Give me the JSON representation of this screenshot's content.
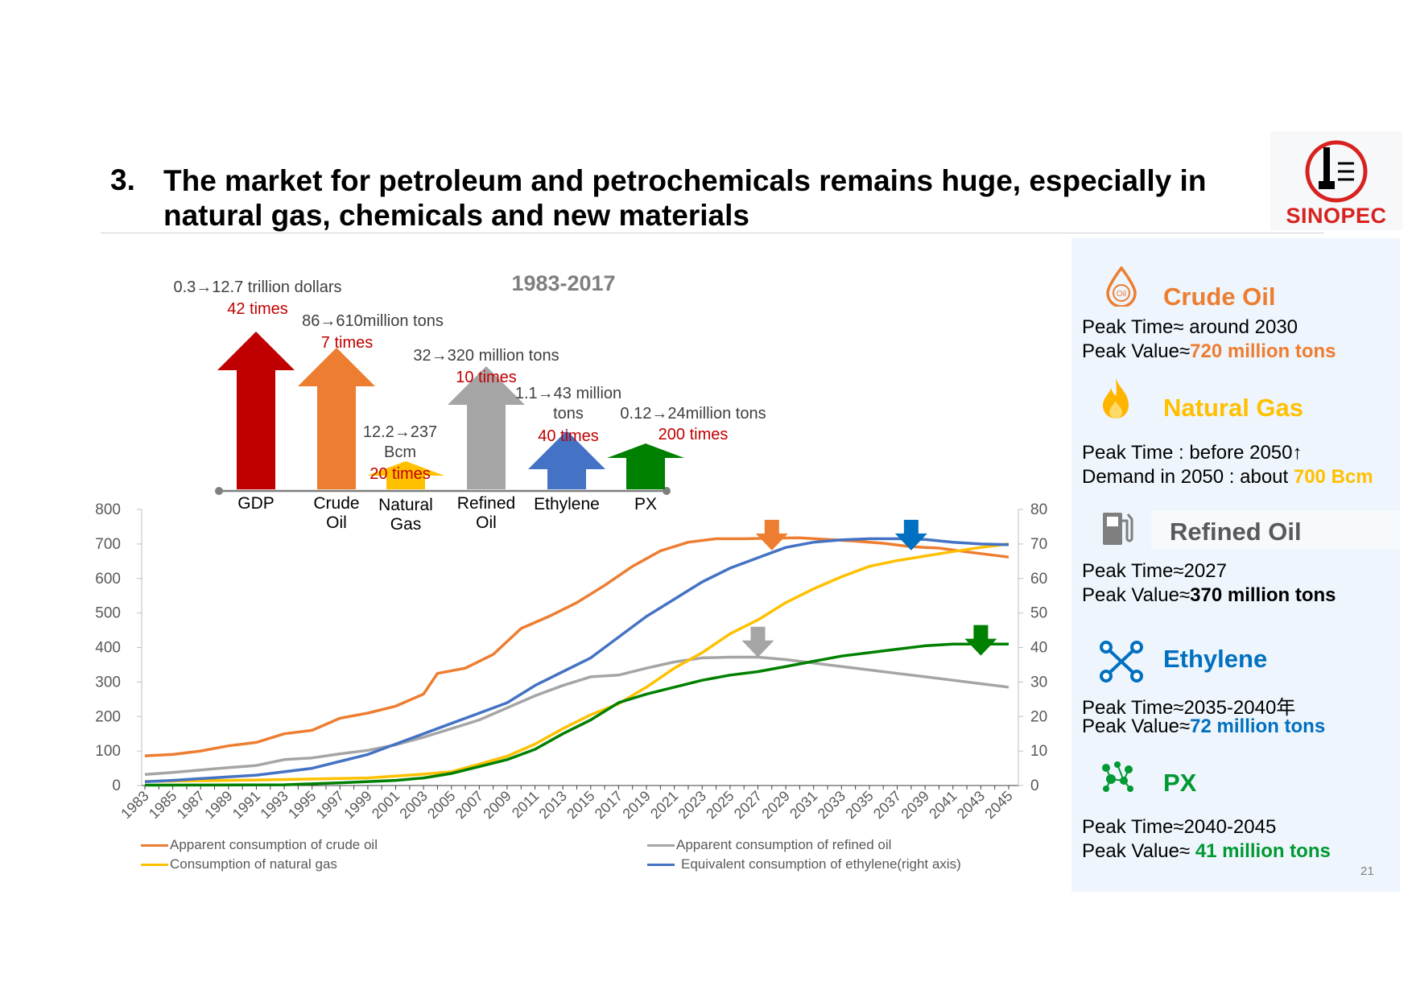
{
  "slide": {
    "number": "3.",
    "title": "The market for petroleum and petrochemicals remains huge, especially in natural gas, chemicals and new materials",
    "page": "21"
  },
  "logo": {
    "text": "SINOPEC",
    "colors": {
      "red": "#d7221f"
    }
  },
  "growth_panel": {
    "period": "1983-2017",
    "items": [
      {
        "label_1": "GDP",
        "label_2": "",
        "detail_1": "0.3→12.7 trillion dollars",
        "detail_2": "",
        "multiple": "42 times",
        "color": "#c00000"
      },
      {
        "label_1": "Crude",
        "label_2": "Oil",
        "detail_1": "86→610million tons",
        "detail_2": "",
        "multiple": "7 times",
        "color": "#ed7d31"
      },
      {
        "label_1": "Natural",
        "label_2": "Gas",
        "detail_1": "12.2→237",
        "detail_2": "Bcm",
        "multiple": "20 times",
        "color": "#ffc000"
      },
      {
        "label_1": "Refined",
        "label_2": "Oil",
        "detail_1": "32→320 million tons",
        "detail_2": "",
        "multiple": "10 times",
        "color": "#a5a5a5"
      },
      {
        "label_1": "Ethylene",
        "label_2": "",
        "detail_1": "1.1→43 million",
        "detail_2": "tons",
        "multiple": "40 times",
        "color": "#4472c4"
      },
      {
        "label_1": "PX",
        "label_2": "",
        "detail_1": "0.12→24million tons",
        "detail_2": "",
        "multiple": "200 times",
        "color": "#008000"
      }
    ]
  },
  "chart_data": {
    "type": "line",
    "x_start": 1983,
    "x_end": 2045,
    "x_tick_labels": [
      "1983",
      "1985",
      "1987",
      "1989",
      "1991",
      "1993",
      "1995",
      "1997",
      "1999",
      "2001",
      "2003",
      "2005",
      "2007",
      "2009",
      "2011",
      "2013",
      "2015",
      "2017",
      "2019",
      "2021",
      "2023",
      "2025",
      "2027",
      "2029",
      "2031",
      "2033",
      "2035",
      "2037",
      "2039",
      "2041",
      "2043",
      "2045"
    ],
    "left_axis": {
      "min": 0,
      "max": 800,
      "ticks": [
        "0",
        "100",
        "200",
        "300",
        "400",
        "500",
        "600",
        "700",
        "800"
      ]
    },
    "right_axis": {
      "min": 0,
      "max": 80,
      "ticks": [
        "0",
        "10",
        "20",
        "30",
        "40",
        "50",
        "60",
        "70",
        "80"
      ]
    },
    "series": [
      {
        "name": "Apparent consumption of crude oil",
        "axis": "left",
        "color": "#ed7d31",
        "points": [
          [
            1983,
            86
          ],
          [
            1985,
            90
          ],
          [
            1987,
            100
          ],
          [
            1989,
            115
          ],
          [
            1991,
            125
          ],
          [
            1993,
            150
          ],
          [
            1995,
            160
          ],
          [
            1997,
            195
          ],
          [
            1999,
            210
          ],
          [
            2001,
            230
          ],
          [
            2003,
            265
          ],
          [
            2004,
            325
          ],
          [
            2006,
            340
          ],
          [
            2008,
            380
          ],
          [
            2010,
            455
          ],
          [
            2012,
            490
          ],
          [
            2014,
            530
          ],
          [
            2016,
            580
          ],
          [
            2018,
            635
          ],
          [
            2020,
            680
          ],
          [
            2022,
            705
          ],
          [
            2024,
            715
          ],
          [
            2026,
            715
          ],
          [
            2028,
            717
          ],
          [
            2030,
            718
          ],
          [
            2032,
            713
          ],
          [
            2034,
            708
          ],
          [
            2036,
            702
          ],
          [
            2038,
            692
          ],
          [
            2040,
            688
          ],
          [
            2042,
            677
          ],
          [
            2045,
            662
          ]
        ]
      },
      {
        "name": "Apparent consumption of refined oil",
        "axis": "left",
        "color": "#a5a5a5",
        "points": [
          [
            1983,
            32
          ],
          [
            1985,
            38
          ],
          [
            1987,
            45
          ],
          [
            1989,
            52
          ],
          [
            1991,
            58
          ],
          [
            1993,
            75
          ],
          [
            1995,
            80
          ],
          [
            1997,
            92
          ],
          [
            1999,
            102
          ],
          [
            2001,
            118
          ],
          [
            2003,
            140
          ],
          [
            2005,
            165
          ],
          [
            2007,
            190
          ],
          [
            2009,
            225
          ],
          [
            2011,
            260
          ],
          [
            2013,
            290
          ],
          [
            2015,
            315
          ],
          [
            2017,
            320
          ],
          [
            2019,
            340
          ],
          [
            2021,
            358
          ],
          [
            2023,
            370
          ],
          [
            2025,
            372
          ],
          [
            2027,
            372
          ],
          [
            2029,
            365
          ],
          [
            2031,
            355
          ],
          [
            2033,
            345
          ],
          [
            2035,
            335
          ],
          [
            2037,
            325
          ],
          [
            2039,
            315
          ],
          [
            2041,
            305
          ],
          [
            2043,
            295
          ],
          [
            2045,
            285
          ]
        ]
      },
      {
        "name": "Consumption of natural gas",
        "axis": "left",
        "color": "#ffc000",
        "points": [
          [
            1983,
            12
          ],
          [
            1987,
            14
          ],
          [
            1991,
            16
          ],
          [
            1995,
            19
          ],
          [
            1999,
            22
          ],
          [
            2003,
            33
          ],
          [
            2005,
            40
          ],
          [
            2007,
            62
          ],
          [
            2009,
            85
          ],
          [
            2011,
            120
          ],
          [
            2013,
            165
          ],
          [
            2015,
            205
          ],
          [
            2017,
            237
          ],
          [
            2019,
            285
          ],
          [
            2021,
            340
          ],
          [
            2023,
            385
          ],
          [
            2025,
            440
          ],
          [
            2027,
            480
          ],
          [
            2029,
            530
          ],
          [
            2031,
            570
          ],
          [
            2033,
            605
          ],
          [
            2035,
            635
          ],
          [
            2037,
            652
          ],
          [
            2039,
            665
          ],
          [
            2041,
            678
          ],
          [
            2043,
            690
          ],
          [
            2045,
            700
          ]
        ]
      },
      {
        "name": "Equivalent consumption of ethylene(right axis)",
        "axis": "right",
        "color": "#4472c4",
        "points": [
          [
            1983,
            1.1
          ],
          [
            1985,
            1.5
          ],
          [
            1987,
            2
          ],
          [
            1989,
            2.5
          ],
          [
            1991,
            3
          ],
          [
            1993,
            4
          ],
          [
            1995,
            5
          ],
          [
            1997,
            7
          ],
          [
            1999,
            9
          ],
          [
            2001,
            12
          ],
          [
            2003,
            15
          ],
          [
            2005,
            18
          ],
          [
            2007,
            21
          ],
          [
            2009,
            24
          ],
          [
            2011,
            29
          ],
          [
            2013,
            33
          ],
          [
            2015,
            37
          ],
          [
            2017,
            43
          ],
          [
            2019,
            49
          ],
          [
            2021,
            54
          ],
          [
            2023,
            59
          ],
          [
            2025,
            63
          ],
          [
            2027,
            66
          ],
          [
            2029,
            69
          ],
          [
            2031,
            70.5
          ],
          [
            2033,
            71.2
          ],
          [
            2035,
            71.5
          ],
          [
            2037,
            71.5
          ],
          [
            2039,
            71.3
          ],
          [
            2041,
            70.5
          ],
          [
            2043,
            70
          ],
          [
            2045,
            69.8
          ]
        ]
      },
      {
        "name": "PX",
        "axis": "right",
        "color": "#008000",
        "points": [
          [
            1983,
            0.12
          ],
          [
            1993,
            0.2
          ],
          [
            1997,
            0.8
          ],
          [
            2001,
            1.5
          ],
          [
            2003,
            2.2
          ],
          [
            2005,
            3.5
          ],
          [
            2007,
            5.5
          ],
          [
            2009,
            7.5
          ],
          [
            2011,
            10.5
          ],
          [
            2013,
            15
          ],
          [
            2015,
            19
          ],
          [
            2017,
            24
          ],
          [
            2019,
            26.5
          ],
          [
            2021,
            28.5
          ],
          [
            2023,
            30.5
          ],
          [
            2025,
            32
          ],
          [
            2027,
            33
          ],
          [
            2029,
            34.5
          ],
          [
            2031,
            36
          ],
          [
            2033,
            37.5
          ],
          [
            2035,
            38.5
          ],
          [
            2037,
            39.5
          ],
          [
            2039,
            40.5
          ],
          [
            2041,
            41
          ],
          [
            2043,
            41
          ],
          [
            2045,
            41
          ]
        ]
      }
    ],
    "peak_arrows": [
      {
        "year": 2028,
        "value": 770,
        "color": "#ed7d31"
      },
      {
        "year": 2038,
        "value": 770,
        "color": "#0070c0"
      },
      {
        "year": 2027,
        "value": 460,
        "color": "#a5a5a5"
      },
      {
        "year": 2043,
        "value": 465,
        "color": "#008000"
      }
    ]
  },
  "legend": [
    {
      "label": "Apparent consumption of crude oil",
      "color": "#ed7d31"
    },
    {
      "label": "Apparent consumption of refined oil",
      "color": "#a5a5a5"
    },
    {
      "label": "Consumption of natural gas",
      "color": "#ffc000"
    },
    {
      "label": "Equivalent consumption of ethylene(right axis)",
      "color": "#4472c4"
    }
  ],
  "forecast_panel": {
    "crude_oil": {
      "title": "Crude Oil",
      "icon_text": "Oil",
      "line1": "Peak Time≈ around 2030",
      "line2_label": "Peak Value≈",
      "line2_value": "720 million tons",
      "color": "#ed7d31"
    },
    "natural_gas": {
      "title": "Natural Gas",
      "line1": "Peak Time : before 2050↑",
      "line2_label": "Demand in 2050 : about ",
      "line2_value": "700 Bcm",
      "color": "#ffc000"
    },
    "refined_oil": {
      "title": "Refined Oil",
      "line1": "Peak Time≈2027",
      "line2_label": "Peak Value≈",
      "line2_value": "370 million tons",
      "color": "#595959"
    },
    "ethylene": {
      "title": "Ethylene",
      "line1": "Peak Time≈2035-2040年",
      "line2_label": "Peak Value≈",
      "line2_value": "72 million tons",
      "color": "#0070c0"
    },
    "px": {
      "title": "PX",
      "line1": "Peak Time≈2040-2045",
      "line2_label": "Peak Value≈ ",
      "line2_value": "41 million tons",
      "color": "#009933"
    }
  }
}
